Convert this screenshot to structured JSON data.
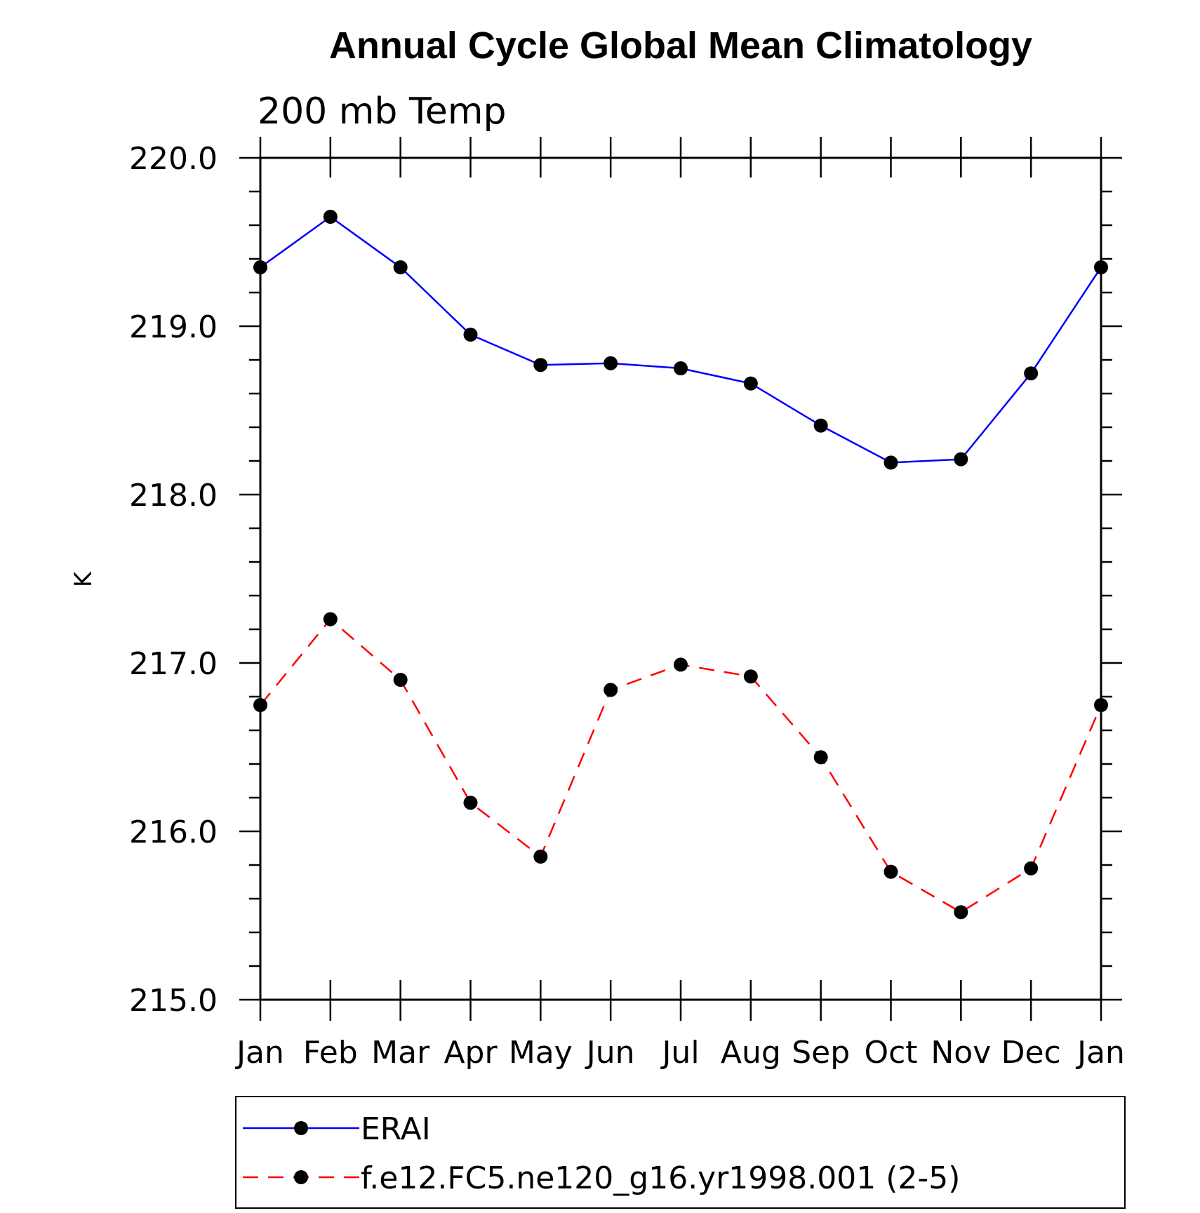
{
  "chart_data": {
    "type": "line",
    "title": "Annual Cycle Global Mean Climatology",
    "subtitle": "200 mb Temp",
    "xlabel": "",
    "ylabel": "K",
    "categories": [
      "Jan",
      "Feb",
      "Mar",
      "Apr",
      "May",
      "Jun",
      "Jul",
      "Aug",
      "Sep",
      "Oct",
      "Nov",
      "Dec",
      "Jan"
    ],
    "ylim": [
      215.0,
      220.0
    ],
    "yticks": [
      "215.0",
      "216.0",
      "217.0",
      "218.0",
      "219.0",
      "220.0"
    ],
    "yminor_step": 0.2,
    "grid": false,
    "legend_position": "bottom",
    "series": [
      {
        "name": "ERAI",
        "color": "#0000ff",
        "line_style": "solid",
        "marker": "filled-circle",
        "values": [
          219.35,
          219.65,
          219.35,
          218.95,
          218.77,
          218.78,
          218.75,
          218.66,
          218.41,
          218.19,
          218.21,
          218.72,
          219.35
        ]
      },
      {
        "name": "f.e12.FC5.ne120_g16.yr1998.001 (2-5)",
        "color": "#ff0000",
        "line_style": "dashed",
        "marker": "filled-circle",
        "values": [
          216.75,
          217.26,
          216.9,
          216.17,
          215.85,
          216.84,
          216.99,
          216.92,
          216.44,
          215.76,
          215.52,
          215.78,
          216.75
        ]
      }
    ]
  }
}
